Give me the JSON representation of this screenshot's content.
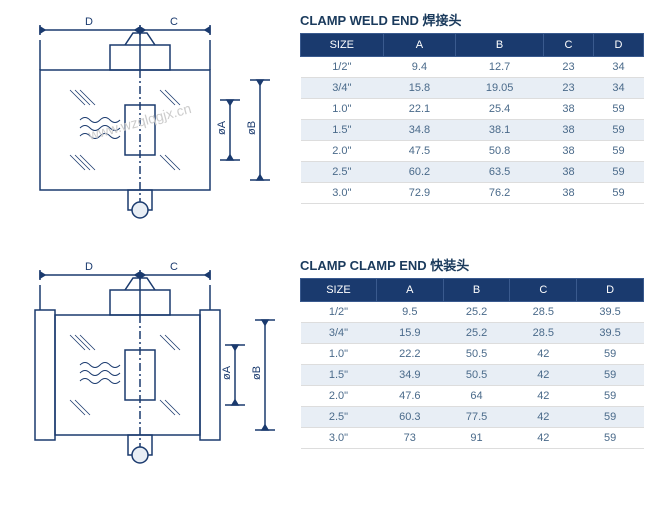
{
  "watermark": "www.wzqlqgjx.cn",
  "table1": {
    "title": "CLAMP WELD END 焊接头",
    "headers": [
      "SIZE",
      "A",
      "B",
      "C",
      "D"
    ],
    "rows": [
      [
        "1/2\"",
        "9.4",
        "12.7",
        "23",
        "34"
      ],
      [
        "3/4\"",
        "15.8",
        "19.05",
        "23",
        "34"
      ],
      [
        "1.0\"",
        "22.1",
        "25.4",
        "38",
        "59"
      ],
      [
        "1.5\"",
        "34.8",
        "38.1",
        "38",
        "59"
      ],
      [
        "2.0\"",
        "47.5",
        "50.8",
        "38",
        "59"
      ],
      [
        "2.5\"",
        "60.2",
        "63.5",
        "38",
        "59"
      ],
      [
        "3.0\"",
        "72.9",
        "76.2",
        "38",
        "59"
      ]
    ]
  },
  "table2": {
    "title": "CLAMP CLAMP END 快装头",
    "headers": [
      "SIZE",
      "A",
      "B",
      "C",
      "D"
    ],
    "rows": [
      [
        "1/2\"",
        "9.5",
        "25.2",
        "28.5",
        "39.5"
      ],
      [
        "3/4\"",
        "15.9",
        "25.2",
        "28.5",
        "39.5"
      ],
      [
        "1.0\"",
        "22.2",
        "50.5",
        "42",
        "59"
      ],
      [
        "1.5\"",
        "34.9",
        "50.5",
        "42",
        "59"
      ],
      [
        "2.0\"",
        "47.6",
        "64",
        "42",
        "59"
      ],
      [
        "2.5\"",
        "60.3",
        "77.5",
        "42",
        "59"
      ],
      [
        "3.0\"",
        "73",
        "91",
        "42",
        "59"
      ]
    ]
  },
  "dims": {
    "d": "D",
    "c": "C",
    "oa": "øA",
    "ob": "øB"
  },
  "colors": {
    "header_bg": "#1a3a6e",
    "row_alt": "#e8eef5",
    "stroke": "#1a3a6e"
  }
}
